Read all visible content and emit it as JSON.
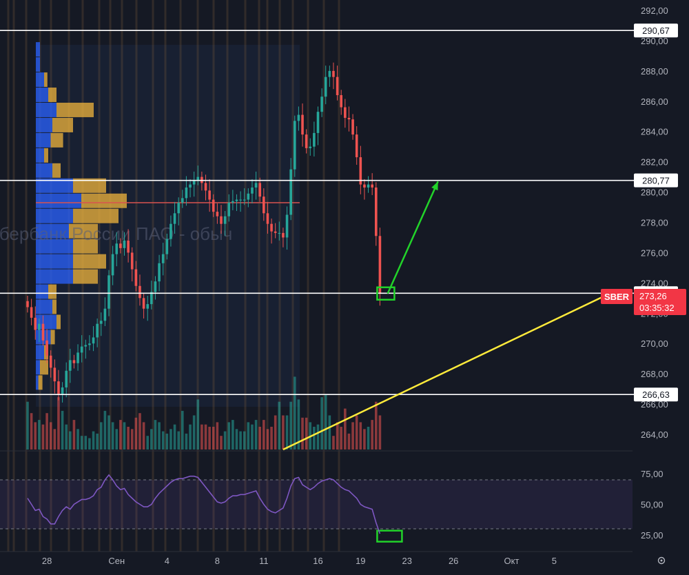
{
  "symbol": "SBER",
  "watermark": "Сбербанк России ПАО - обыч",
  "price_axis": {
    "ticks": [
      "292,00",
      "290,00",
      "288,00",
      "286,00",
      "284,00",
      "282,00",
      "280,00",
      "278,00",
      "276,00",
      "274,00",
      "272,00",
      "270,00",
      "268,00",
      "266,00",
      "264,00"
    ],
    "tick_values": [
      292,
      290,
      288,
      286,
      284,
      282,
      280,
      278,
      276,
      274,
      272,
      270,
      268,
      266,
      264
    ]
  },
  "rsi_axis": {
    "ticks": [
      "75,00",
      "50,00",
      "25,00"
    ],
    "tick_values": [
      75,
      50,
      25
    ]
  },
  "time_axis": {
    "labels": [
      "5",
      "28",
      "Сен",
      "4",
      "8",
      "11",
      "16",
      "19",
      "23",
      "26",
      "Окт",
      "5"
    ],
    "indices": [
      -18,
      5,
      23,
      36,
      49,
      61,
      75,
      86,
      98,
      110,
      125,
      136
    ]
  },
  "current_price": {
    "label": "273,26",
    "countdown": "03:35:32",
    "color": "#f23645"
  },
  "horizontal_levels": [
    {
      "label": "290,67",
      "value": 290.67
    },
    {
      "label": "280,77",
      "value": 280.77
    },
    {
      "label": "273,32",
      "value": 273.32
    },
    {
      "label": "266,63",
      "value": 266.63
    }
  ],
  "poc_level": 279.3,
  "colors": {
    "background": "#151924",
    "up": "#26a69a",
    "down": "#ef5350",
    "profile_up": "#2962ff",
    "profile_down": "#f0b43c",
    "rsi_line": "#7e57c2",
    "projection_up": "#22d32a",
    "trendline": "#ffeb3b",
    "level_line": "#ffffff"
  },
  "chart_data": {
    "type": "candlestick",
    "x_unit": "bar index (hourly), Sep 2024",
    "price_range": [
      263,
      293
    ],
    "closes": [
      272.4,
      271.7,
      270.9,
      271.3,
      270.2,
      269.2,
      268.4,
      267.5,
      266.6,
      267.1,
      268.2,
      268.9,
      268.7,
      269.4,
      269.8,
      269.9,
      270.0,
      270.4,
      271.3,
      271.5,
      272.3,
      274.5,
      275.9,
      276.6,
      276.3,
      276.8,
      276.0,
      274.9,
      273.8,
      273.0,
      272.3,
      272.6,
      273.4,
      274.1,
      275.3,
      275.9,
      276.9,
      277.9,
      278.6,
      279.3,
      279.6,
      280.3,
      280.5,
      280.8,
      281.0,
      280.6,
      280.1,
      279.5,
      278.7,
      278.4,
      277.9,
      278.4,
      279.3,
      279.4,
      279.5,
      279.5,
      279.5,
      279.9,
      280.3,
      280.6,
      279.7,
      278.6,
      277.9,
      277.4,
      277.3,
      277.3,
      277.0,
      278.5,
      281.5,
      284.7,
      285.1,
      283.8,
      282.9,
      283.0,
      283.9,
      285.3,
      286.3,
      287.6,
      288.0,
      287.6,
      286.4,
      285.6,
      284.9,
      284.8,
      283.8,
      282.3,
      280.5,
      280.3,
      280.5,
      280.3,
      277.1,
      273.3
    ],
    "volumes": [
      2.1,
      1.6,
      1.2,
      1.3,
      1.1,
      1.6,
      1.2,
      0.9,
      2.3,
      1.7,
      1.1,
      0.8,
      1.3,
      0.9,
      0.6,
      0.6,
      0.5,
      0.8,
      0.7,
      1.2,
      1.7,
      1.5,
      1.2,
      0.9,
      1.3,
      1.2,
      1.0,
      0.9,
      1.4,
      1.6,
      1.2,
      0.6,
      0.9,
      1.3,
      1.2,
      0.8,
      0.7,
      0.9,
      1.1,
      0.8,
      1.7,
      0.7,
      1.1,
      1.5,
      2.2,
      1.1,
      1.1,
      1.0,
      1.0,
      1.2,
      0.6,
      0.8,
      1.2,
      1.3,
      0.9,
      0.8,
      0.8,
      1.2,
      1.1,
      1.3,
      1.0,
      1.3,
      0.9,
      1.0,
      1.5,
      2.1,
      1.5,
      1.5,
      2.1,
      3.2,
      2.2,
      1.4,
      1.4,
      1.2,
      1.0,
      1.1,
      2.3,
      2.4,
      1.5,
      0.6,
      1.2,
      1.0,
      1.8,
      0.7,
      1.2,
      1.5,
      1.2,
      0.9,
      1.0,
      1.3,
      2.1,
      1.5
    ],
    "rsi": [
      55,
      50,
      45,
      46,
      40,
      38,
      34,
      34,
      40,
      45,
      48,
      46,
      50,
      52,
      54,
      54,
      55,
      57,
      62,
      64,
      70,
      74,
      70,
      65,
      62,
      63,
      58,
      55,
      52,
      50,
      48,
      48,
      50,
      55,
      59,
      62,
      65,
      68,
      70,
      71,
      71,
      72,
      73,
      73,
      72,
      68,
      64,
      60,
      56,
      52,
      51,
      52,
      55,
      57,
      57,
      58,
      58,
      59,
      60,
      61,
      55,
      50,
      46,
      44,
      43,
      45,
      47,
      55,
      65,
      71,
      72,
      66,
      64,
      62,
      64,
      67,
      69,
      70,
      71,
      70,
      67,
      64,
      62,
      61,
      58,
      55,
      50,
      48,
      47,
      46,
      35,
      26
    ],
    "rsi_levels": [
      70,
      30
    ],
    "rsi_range": [
      20,
      78
    ],
    "volume_profile": [
      {
        "price": 289.4,
        "up": 0.05,
        "down": 0.0
      },
      {
        "price": 288.4,
        "up": 0.05,
        "down": 0.0
      },
      {
        "price": 287.4,
        "up": 0.1,
        "down": 0.04
      },
      {
        "price": 286.4,
        "up": 0.15,
        "down": 0.1
      },
      {
        "price": 285.4,
        "up": 0.25,
        "down": 0.45
      },
      {
        "price": 284.4,
        "up": 0.2,
        "down": 0.25
      },
      {
        "price": 283.4,
        "up": 0.18,
        "down": 0.15
      },
      {
        "price": 282.4,
        "up": 0.1,
        "down": 0.05
      },
      {
        "price": 281.4,
        "up": 0.2,
        "down": 0.1
      },
      {
        "price": 280.4,
        "up": 0.45,
        "down": 0.4
      },
      {
        "price": 279.4,
        "up": 0.55,
        "down": 0.55
      },
      {
        "price": 278.4,
        "up": 0.45,
        "down": 0.55
      },
      {
        "price": 277.4,
        "up": 0.4,
        "down": 0.35
      },
      {
        "price": 276.4,
        "up": 0.45,
        "down": 0.3
      },
      {
        "price": 275.4,
        "up": 0.45,
        "down": 0.4
      },
      {
        "price": 274.4,
        "up": 0.45,
        "down": 0.3
      },
      {
        "price": 273.4,
        "up": 0.15,
        "down": 0.1
      },
      {
        "price": 272.4,
        "up": 0.2,
        "down": 0.05
      },
      {
        "price": 271.4,
        "up": 0.25,
        "down": 0.05
      },
      {
        "price": 270.4,
        "up": 0.18,
        "down": 0.05
      },
      {
        "price": 269.4,
        "up": 0.1,
        "down": 0.05
      },
      {
        "price": 268.4,
        "up": 0.05,
        "down": 0.1
      },
      {
        "price": 267.4,
        "up": 0.03,
        "down": 0.05
      }
    ],
    "annotations": [
      {
        "type": "arrow",
        "from": {
          "bar": 93,
          "price": 273.3
        },
        "to": {
          "bar": 106,
          "price": 280.7
        },
        "color": "#22d32a"
      },
      {
        "type": "trendline",
        "from": {
          "bar": 66,
          "price": 263.0
        },
        "to": {
          "bar": 150,
          "price": 273.26
        },
        "color": "#ffeb3b"
      },
      {
        "type": "box",
        "bar": 91,
        "price": 273.3,
        "color": "#22d32a"
      },
      {
        "type": "rsi_box",
        "bar": 91,
        "rsi": 24,
        "color": "#22d32a"
      }
    ]
  }
}
